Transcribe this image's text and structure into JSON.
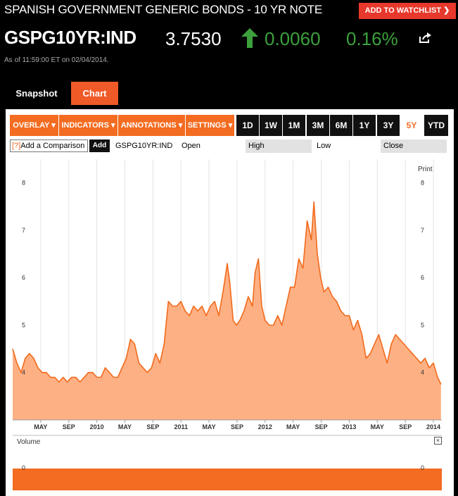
{
  "header": {
    "title": "SPANISH GOVERNMENT GENERIC BONDS - 10 YR NOTE",
    "watchlist_label": "ADD TO WATCHLIST",
    "ticker": "GSPG10YR:IND",
    "price": "3.7530",
    "change": "0.0060",
    "change_pct": "0.16%",
    "as_of": "As of 11:59:00 ET on 02/04/2014."
  },
  "tabs": {
    "snapshot": "Snapshot",
    "chart": "Chart"
  },
  "toolbar": {
    "overlay": "OVERLAY",
    "indicators": "INDICATORS",
    "annotations": "ANNOTATIONS",
    "settings": "SETTINGS",
    "ranges": [
      "1D",
      "1W",
      "1M",
      "3M",
      "6M",
      "1Y",
      "3Y",
      "5Y",
      "YTD"
    ],
    "active_range": "5Y"
  },
  "compare": {
    "q": "[?]",
    "label": "Add a Comparison",
    "add": "Add",
    "symbol": "GSPG10YR:IND",
    "open": "Open",
    "high": "High",
    "low": "Low",
    "close": "Close"
  },
  "print_label": "Print",
  "volume_label": "Volume",
  "close_x": "×",
  "colors": {
    "accent": "#f36c21",
    "up": "#3ca13c",
    "area_fill": "#fdb084",
    "line": "#f26a1b",
    "volume": "#f36c21"
  },
  "chart_data": {
    "type": "area",
    "title": "",
    "xlabel": "",
    "ylabel": "",
    "ylim": [
      3.0,
      8.5
    ],
    "yticks": [
      4,
      5,
      6,
      7,
      8
    ],
    "x_tick_labels": [
      "MAY",
      "SEP",
      "2010",
      "MAY",
      "SEP",
      "2011",
      "MAY",
      "SEP",
      "2012",
      "MAY",
      "SEP",
      "2013",
      "MAY",
      "SEP",
      "2014"
    ],
    "x_tick_positions": [
      2009.333,
      2009.667,
      2010.0,
      2010.333,
      2010.667,
      2011.0,
      2011.333,
      2011.667,
      2012.0,
      2012.333,
      2012.667,
      2013.0,
      2013.333,
      2013.667,
      2014.0
    ],
    "xlim": [
      2009.0,
      2014.1
    ],
    "grid": "vertical",
    "series": [
      {
        "x": [
          2009.0,
          2009.05,
          2009.1,
          2009.15,
          2009.2,
          2009.25,
          2009.3,
          2009.35,
          2009.4,
          2009.45,
          2009.5,
          2009.55,
          2009.6,
          2009.65,
          2009.7,
          2009.75,
          2009.8,
          2009.85,
          2009.9,
          2009.95,
          2010.0,
          2010.05,
          2010.1,
          2010.15,
          2010.2,
          2010.25,
          2010.3,
          2010.35,
          2010.4,
          2010.45,
          2010.5,
          2010.55,
          2010.6,
          2010.65,
          2010.7,
          2010.75,
          2010.8,
          2010.85,
          2010.9,
          2010.95,
          2011.0,
          2011.05,
          2011.1,
          2011.15,
          2011.2,
          2011.25,
          2011.3,
          2011.35,
          2011.4,
          2011.45,
          2011.5,
          2011.55,
          2011.58,
          2011.62,
          2011.66,
          2011.7,
          2011.75,
          2011.8,
          2011.85,
          2011.88,
          2011.92,
          2011.96,
          2012.0,
          2012.05,
          2012.1,
          2012.15,
          2012.2,
          2012.25,
          2012.3,
          2012.35,
          2012.4,
          2012.45,
          2012.5,
          2012.55,
          2012.58,
          2012.62,
          2012.66,
          2012.7,
          2012.75,
          2012.8,
          2012.85,
          2012.9,
          2012.95,
          2013.0,
          2013.05,
          2013.1,
          2013.15,
          2013.2,
          2013.25,
          2013.3,
          2013.35,
          2013.4,
          2013.45,
          2013.5,
          2013.55,
          2013.6,
          2013.65,
          2013.7,
          2013.75,
          2013.8,
          2013.85,
          2013.9,
          2013.95,
          2014.0,
          2014.05,
          2014.09
        ],
        "values": [
          4.5,
          4.2,
          4.0,
          4.3,
          4.4,
          4.3,
          4.1,
          4.0,
          4.0,
          3.9,
          3.9,
          3.8,
          3.9,
          3.8,
          3.9,
          3.9,
          3.8,
          3.9,
          4.0,
          4.0,
          3.9,
          3.9,
          4.1,
          4.0,
          3.9,
          3.9,
          4.1,
          4.3,
          4.7,
          4.6,
          4.2,
          4.1,
          4.0,
          4.1,
          4.4,
          4.2,
          4.6,
          5.5,
          5.4,
          5.4,
          5.5,
          5.3,
          5.2,
          5.4,
          5.3,
          5.4,
          5.2,
          5.4,
          5.5,
          5.2,
          5.7,
          6.3,
          5.9,
          5.1,
          5.0,
          5.1,
          5.3,
          5.6,
          5.4,
          6.1,
          6.4,
          5.4,
          5.1,
          5.0,
          5.0,
          5.2,
          5.0,
          5.4,
          5.8,
          5.8,
          6.4,
          6.2,
          7.2,
          6.8,
          7.6,
          6.5,
          6.0,
          5.7,
          5.8,
          5.6,
          5.5,
          5.3,
          5.2,
          5.2,
          4.9,
          5.1,
          4.8,
          4.3,
          4.4,
          4.6,
          4.8,
          4.5,
          4.2,
          4.6,
          4.8,
          4.7,
          4.6,
          4.5,
          4.4,
          4.3,
          4.2,
          4.3,
          4.1,
          4.2,
          3.9,
          3.75
        ]
      }
    ]
  }
}
